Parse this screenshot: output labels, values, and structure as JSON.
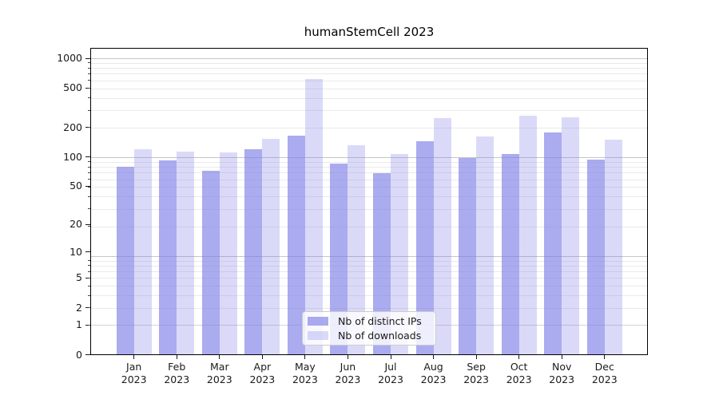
{
  "title": "humanStemCell 2023",
  "legend": {
    "items": [
      {
        "label": "Nb of distinct IPs",
        "color": "#aaaaf0"
      },
      {
        "label": "Nb of downloads",
        "color": "#d8d8f8"
      }
    ]
  },
  "axes": {
    "y_tick_labels": [
      "1000",
      "500",
      "200",
      "100",
      "50",
      "20",
      "10",
      "5",
      "2",
      "1",
      "0"
    ],
    "x_month_labels": [
      "Jan",
      "Feb",
      "Mar",
      "Apr",
      "May",
      "Jun",
      "Jul",
      "Aug",
      "Sep",
      "Oct",
      "Nov",
      "Dec"
    ],
    "x_year_label": "2023"
  },
  "chart_data": {
    "type": "bar",
    "title": "humanStemCell 2023",
    "categories": [
      "Jan 2023",
      "Feb 2023",
      "Mar 2023",
      "Apr 2023",
      "May 2023",
      "Jun 2023",
      "Jul 2023",
      "Aug 2023",
      "Sep 2023",
      "Oct 2023",
      "Nov 2023",
      "Dec 2023"
    ],
    "series": [
      {
        "name": "Nb of distinct IPs",
        "color": "#aaaaf0",
        "values": [
          78,
          91,
          71,
          118,
          162,
          84,
          68,
          142,
          97,
          105,
          175,
          93
        ]
      },
      {
        "name": "Nb of downloads",
        "color": "#d8d8f8",
        "values": [
          119,
          112,
          109,
          150,
          613,
          131,
          106,
          247,
          159,
          259,
          252,
          148
        ]
      }
    ],
    "y_axis": {
      "scale": "log10(value+1)",
      "ticks": [
        0,
        1,
        2,
        5,
        10,
        20,
        50,
        100,
        200,
        500,
        1000
      ],
      "range": [
        0,
        1280
      ]
    },
    "x_axis": {
      "label_line2": "2023"
    },
    "grid": true,
    "legend_position": "lower center"
  }
}
